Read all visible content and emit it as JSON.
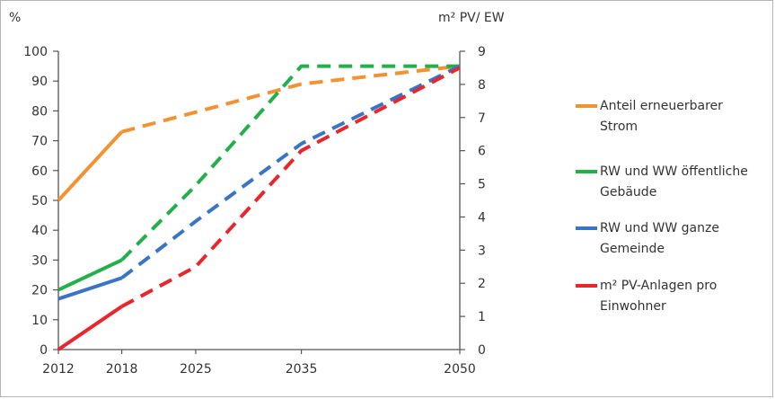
{
  "chart_data": {
    "type": "line",
    "left_axis": {
      "unit": "%",
      "ylim": [
        0,
        100
      ],
      "ticks": [
        "0",
        "10",
        "20",
        "30",
        "40",
        "50",
        "60",
        "70",
        "80",
        "90",
        "100"
      ]
    },
    "right_axis": {
      "unit": "m² PV/ EW",
      "ylim": [
        0,
        9
      ],
      "ticks": [
        "0",
        "1",
        "2",
        "3",
        "4",
        "5",
        "6",
        "7",
        "8",
        "9"
      ]
    },
    "x_ticks": [
      "2012",
      "2018",
      "2025",
      "2035",
      "2050"
    ],
    "x_range": [
      2012,
      2050
    ],
    "series": [
      {
        "name": "Anteil erneuerbarer Strom",
        "color": "#f39234",
        "axis": "left",
        "points": [
          [
            2012,
            50
          ],
          [
            2018,
            73
          ],
          [
            2035,
            89
          ],
          [
            2050,
            95
          ]
        ],
        "dashed_from_index": 1
      },
      {
        "name": "RW und WW öffentliche Gebäude",
        "color": "#22b04a",
        "axis": "left",
        "points": [
          [
            2012,
            20
          ],
          [
            2018,
            30
          ],
          [
            2025,
            55
          ],
          [
            2035,
            95
          ],
          [
            2050,
            95
          ]
        ],
        "dashed_from_index": 1
      },
      {
        "name": "RW und WW ganze Gemeinde",
        "color": "#3a74c4",
        "axis": "left",
        "points": [
          [
            2012,
            17
          ],
          [
            2018,
            24
          ],
          [
            2025,
            43
          ],
          [
            2035,
            69
          ],
          [
            2050,
            95
          ]
        ],
        "dashed_from_index": 1
      },
      {
        "name": "m² PV-Anlagen pro Einwohner",
        "color": "#e8262b",
        "axis": "right",
        "points": [
          [
            2012,
            0
          ],
          [
            2018,
            1.3
          ],
          [
            2025,
            2.5
          ],
          [
            2035,
            6.0
          ],
          [
            2050,
            8.5
          ]
        ],
        "dashed_from_index": 1
      }
    ],
    "legend": {
      "placement": "right",
      "items": [
        {
          "line1": "Anteil erneuerbarer",
          "line2": "Strom",
          "color": "#f39234"
        },
        {
          "line1": "RW und WW öffentliche",
          "line2": "Gebäude",
          "color": "#22b04a"
        },
        {
          "line1": "RW und WW ganze",
          "line2": "Gemeinde",
          "color": "#3a74c4"
        },
        {
          "line1": "m² PV-Anlagen pro",
          "line2": "Einwohner",
          "color": "#e8262b"
        }
      ]
    }
  }
}
